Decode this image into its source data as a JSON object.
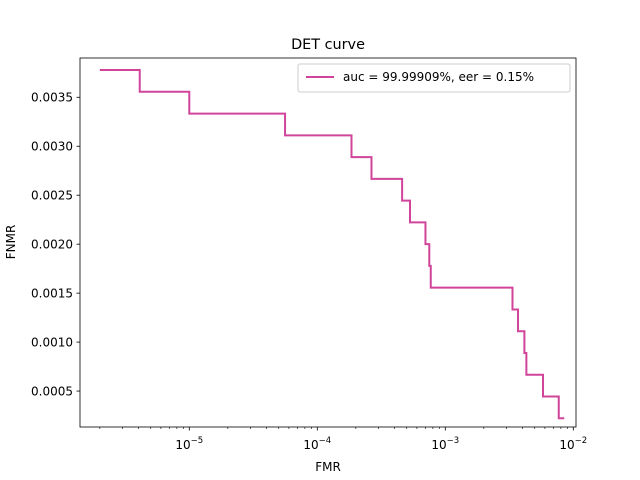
{
  "chart_data": {
    "type": "line",
    "title": "DET curve",
    "xlabel": "FMR",
    "ylabel": "FNMR",
    "x_scale": "log",
    "xlim": [
      1.4e-06,
      0.0105
    ],
    "ylim": [
      0.000133,
      0.003901
    ],
    "x_ticks": [
      {
        "value": 1e-05,
        "base": "10",
        "exp": "−5"
      },
      {
        "value": 0.0001,
        "base": "10",
        "exp": "−4"
      },
      {
        "value": 0.001,
        "base": "10",
        "exp": "−3"
      },
      {
        "value": 0.01,
        "base": "10",
        "exp": "−2"
      }
    ],
    "y_ticks": [
      {
        "value": 0.0005,
        "label": "0.0005"
      },
      {
        "value": 0.001,
        "label": "0.0010"
      },
      {
        "value": 0.0015,
        "label": "0.0015"
      },
      {
        "value": 0.002,
        "label": "0.0020"
      },
      {
        "value": 0.0025,
        "label": "0.0025"
      },
      {
        "value": 0.003,
        "label": "0.0030"
      },
      {
        "value": 0.0035,
        "label": "0.0035"
      }
    ],
    "grid": false,
    "legend_position": "top-right",
    "series": [
      {
        "name": "auc = 99.99909%, eer = 0.15%",
        "color": "#d0449a",
        "points": [
          [
            2e-06,
            0.003778
          ],
          [
            4.1e-06,
            0.003778
          ],
          [
            4.1e-06,
            0.003556
          ],
          [
            1e-05,
            0.003556
          ],
          [
            1e-05,
            0.003333
          ],
          [
            5.6e-05,
            0.003333
          ],
          [
            5.6e-05,
            0.003111
          ],
          [
            0.000185,
            0.003111
          ],
          [
            0.000185,
            0.002889
          ],
          [
            0.000265,
            0.002889
          ],
          [
            0.000265,
            0.002667
          ],
          [
            0.00046,
            0.002667
          ],
          [
            0.00046,
            0.002444
          ],
          [
            0.00053,
            0.002444
          ],
          [
            0.00053,
            0.002222
          ],
          [
            0.0007,
            0.002222
          ],
          [
            0.0007,
            0.002
          ],
          [
            0.00075,
            0.002
          ],
          [
            0.00075,
            0.001778
          ],
          [
            0.00077,
            0.001778
          ],
          [
            0.00077,
            0.001556
          ],
          [
            0.00335,
            0.001556
          ],
          [
            0.00335,
            0.001333
          ],
          [
            0.0037,
            0.001333
          ],
          [
            0.0037,
            0.001111
          ],
          [
            0.00415,
            0.001111
          ],
          [
            0.00415,
            0.000889
          ],
          [
            0.0043,
            0.000889
          ],
          [
            0.0043,
            0.000667
          ],
          [
            0.0058,
            0.000667
          ],
          [
            0.0058,
            0.000444
          ],
          [
            0.0077,
            0.000444
          ],
          [
            0.0077,
            0.000222
          ],
          [
            0.0085,
            0.000222
          ]
        ]
      }
    ]
  }
}
